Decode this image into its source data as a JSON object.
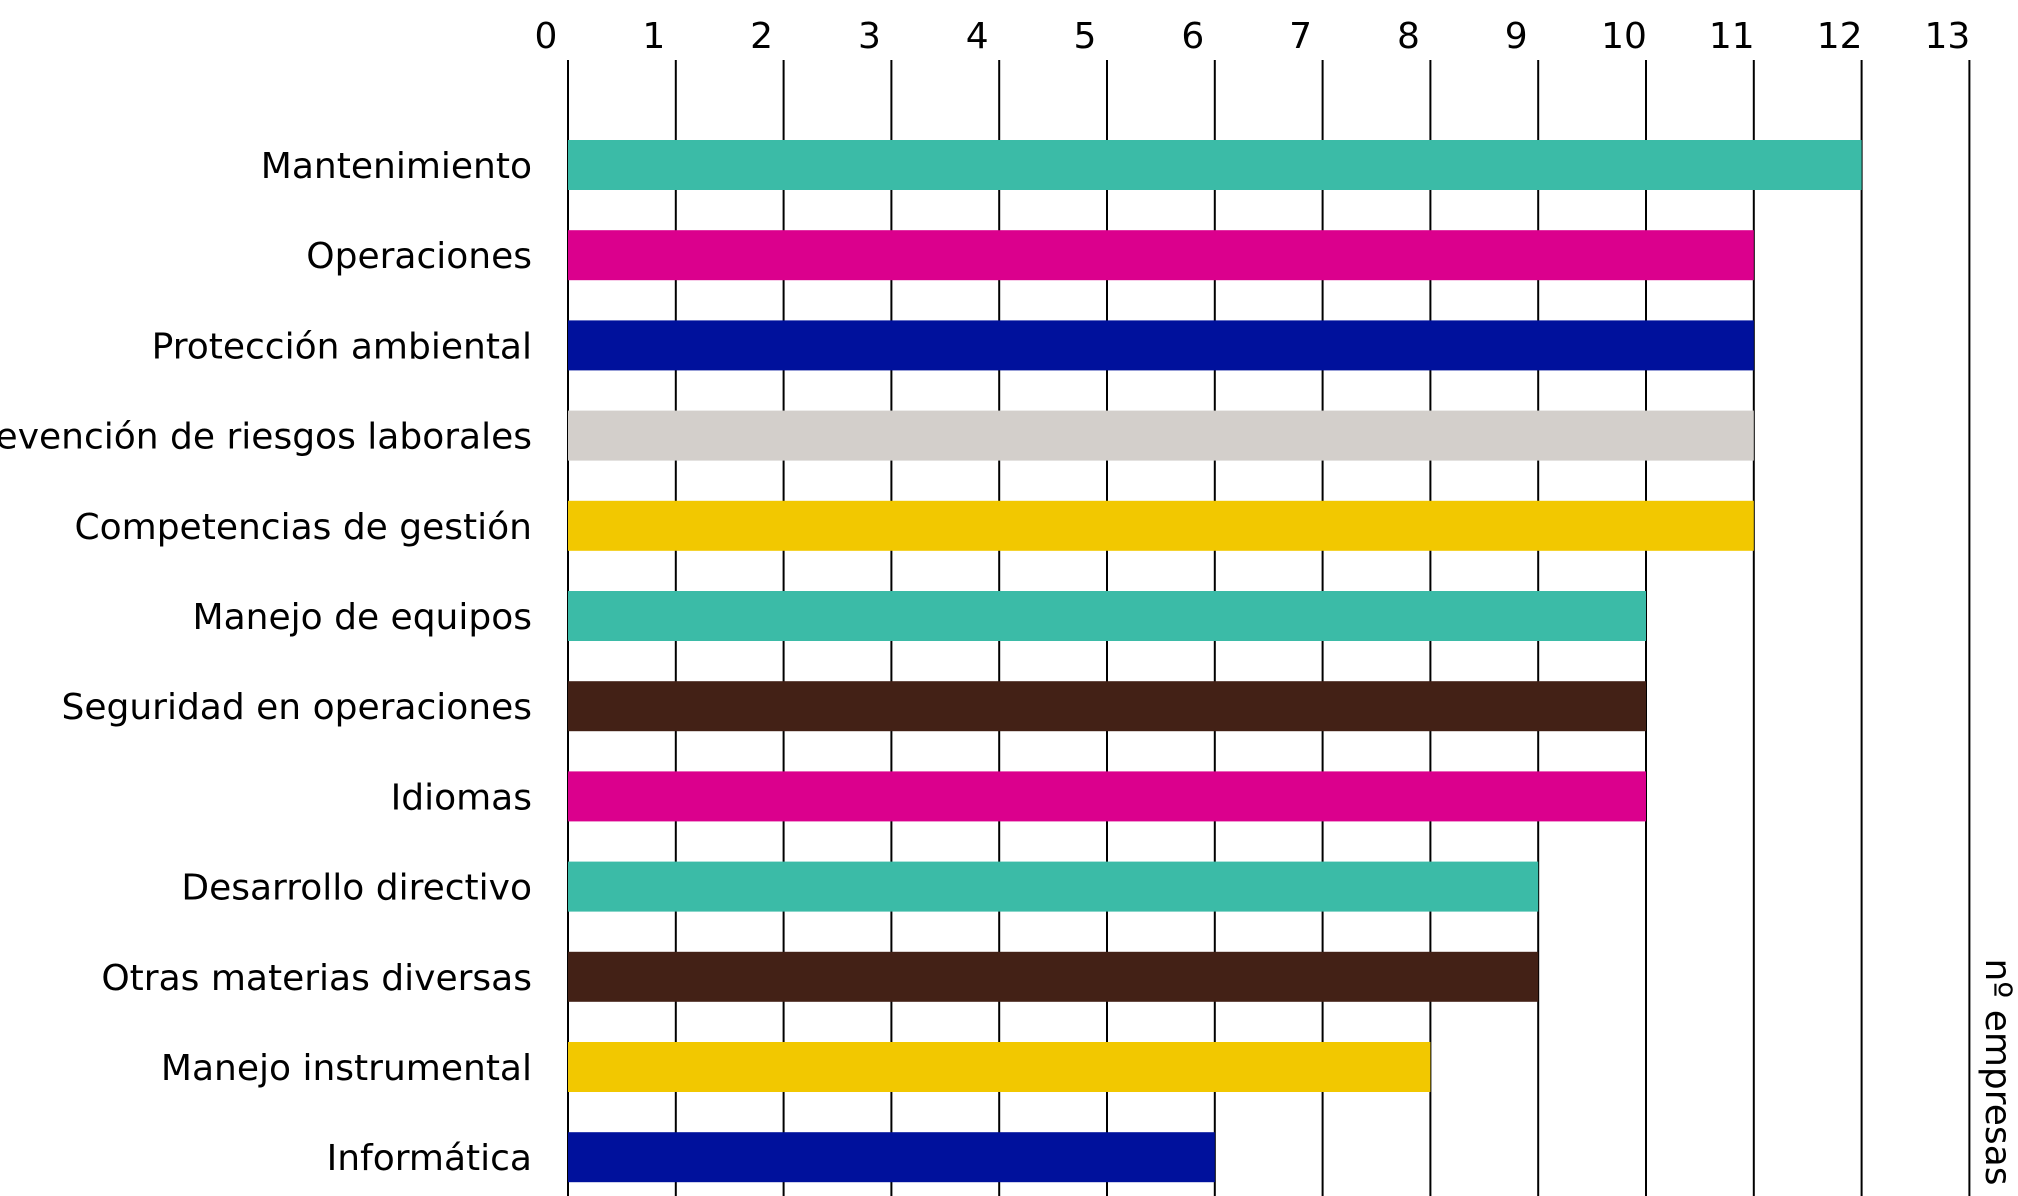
{
  "chart_data": {
    "type": "bar",
    "orientation": "horizontal",
    "categories": [
      "Mantenimiento",
      "Operaciones",
      "Protección ambiental",
      "Prevención de riesgos laborales",
      "Competencias de gestión",
      "Manejo de equipos",
      "Seguridad en operaciones",
      "Idiomas",
      "Desarrollo directivo",
      "Otras materias diversas",
      "Manejo instrumental",
      "Informática"
    ],
    "values": [
      12,
      11,
      11,
      11,
      11,
      10,
      10,
      10,
      9,
      9,
      8,
      6
    ],
    "colors": [
      "#3bbba7",
      "#db008d",
      "#00119c",
      "#d3cfcb",
      "#f2c800",
      "#3bbba7",
      "#432116",
      "#db008d",
      "#3bbba7",
      "#432116",
      "#f2c800",
      "#00119c"
    ],
    "x_ticks": [
      "0",
      "1",
      "2",
      "3",
      "4",
      "5",
      "6",
      "7",
      "8",
      "9",
      "10",
      "11",
      "12",
      "13"
    ],
    "xlim": [
      0,
      13
    ],
    "axis_position": "top",
    "grid": true,
    "xlabel": "nº empresas",
    "title": "",
    "ylabel": ""
  }
}
